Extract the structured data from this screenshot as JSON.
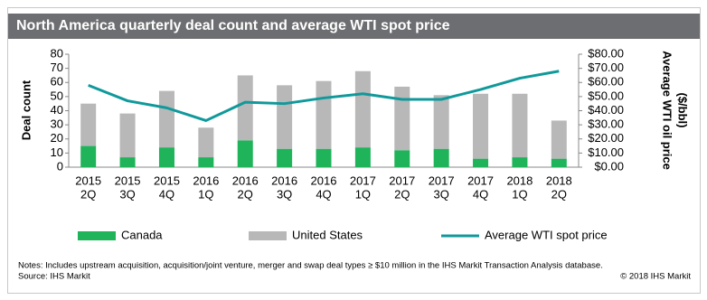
{
  "chart_data": {
    "type": "bar",
    "stacked": true,
    "title": "North America quarterly deal count and average WTI spot price",
    "ylabel": "Deal count",
    "y2label": [
      "Average WTI oil price",
      "($/bbl)"
    ],
    "categories": [
      [
        "2015",
        "2Q"
      ],
      [
        "2015",
        "3Q"
      ],
      [
        "2015",
        "4Q"
      ],
      [
        "2016",
        "1Q"
      ],
      [
        "2016",
        "2Q"
      ],
      [
        "2016",
        "3Q"
      ],
      [
        "2016",
        "4Q"
      ],
      [
        "2017",
        "1Q"
      ],
      [
        "2017",
        "2Q"
      ],
      [
        "2017",
        "3Q"
      ],
      [
        "2017",
        "4Q"
      ],
      [
        "2018",
        "1Q"
      ],
      [
        "2018",
        "2Q"
      ]
    ],
    "series": [
      {
        "name": "Canada",
        "type": "bar",
        "color": "#1fb35a",
        "values": [
          15,
          7,
          14,
          7,
          19,
          13,
          13,
          14,
          12,
          13,
          6,
          7,
          6
        ]
      },
      {
        "name": "United States",
        "type": "bar",
        "color": "#b8b8b8",
        "values": [
          30,
          31,
          40,
          21,
          46,
          45,
          48,
          54,
          45,
          38,
          46,
          45,
          27
        ]
      },
      {
        "name": "Average WTI spot price",
        "type": "line",
        "axis": "y2",
        "color": "#10999b",
        "values": [
          58,
          47,
          42,
          33,
          46,
          45,
          49,
          52,
          48,
          48,
          55,
          63,
          68
        ]
      }
    ],
    "ylim": [
      0,
      80
    ],
    "yticks": [
      0,
      10,
      20,
      30,
      40,
      50,
      60,
      70,
      80
    ],
    "y2lim": [
      0,
      80
    ],
    "y2ticks": [
      {
        "value": 0,
        "label": "$0.00"
      },
      {
        "value": 10,
        "label": "$10.00"
      },
      {
        "value": 20,
        "label": "$20.00"
      },
      {
        "value": 30,
        "label": "$30.00"
      },
      {
        "value": 40,
        "label": "$40.00"
      },
      {
        "value": 50,
        "label": "$50.00"
      },
      {
        "value": 60,
        "label": "$60.00"
      },
      {
        "value": 70,
        "label": "$70.00"
      },
      {
        "value": 80,
        "label": "$80.00"
      }
    ],
    "grid": false,
    "legend": "bottom",
    "notes": "Notes: Includes upstream acquisition, acquisition/joint venture, merger and swap deal types ≥ $10 million in the IHS Markit Transaction Analysis database.",
    "source": "Source: IHS Markit",
    "copyright": "© 2018 IHS Markit"
  }
}
